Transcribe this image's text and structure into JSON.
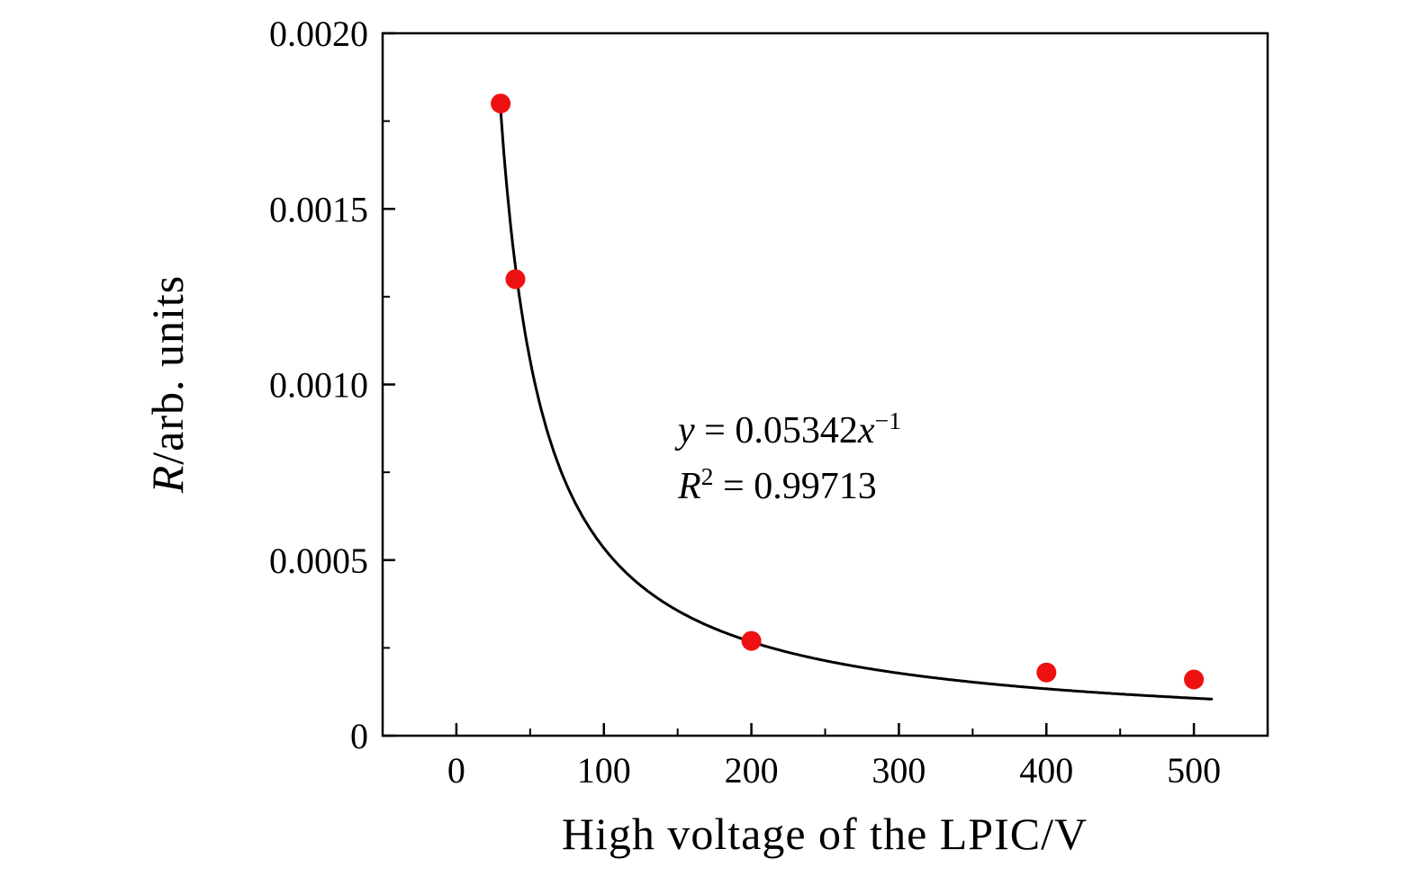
{
  "page": {
    "background": "#ffffff"
  },
  "chart_data": {
    "type": "scatter",
    "title": "",
    "xlabel": "High voltage of the LPIC/V",
    "ylabel": "R/arb. units",
    "ylabel_segments": [
      {
        "text": "R",
        "italic": true
      },
      {
        "text": "/arb. units",
        "italic": false
      }
    ],
    "xlim": [
      -50,
      550
    ],
    "ylim": [
      0,
      0.002
    ],
    "x_ticks": [
      0,
      100,
      200,
      300,
      400,
      500
    ],
    "x_tick_labels": [
      "0",
      "100",
      "200",
      "300",
      "400",
      "500"
    ],
    "x_minor_ticks": [
      50,
      150,
      250,
      350,
      450
    ],
    "y_ticks": [
      0,
      0.0005,
      0.001,
      0.0015,
      0.002
    ],
    "y_tick_labels": [
      "0",
      "0.0005",
      "0.0010",
      "0.0015",
      "0.0020"
    ],
    "y_minor_ticks": [
      0.00025,
      0.00075,
      0.00125,
      0.00175
    ],
    "grid": false,
    "legend": null,
    "axis_color": "#000000",
    "series": [
      {
        "name": "measured-points",
        "type": "scatter",
        "marker": "circle",
        "color": "#ee1111",
        "points": [
          {
            "x": 30,
            "y": 0.0018
          },
          {
            "x": 40,
            "y": 0.0013
          },
          {
            "x": 200,
            "y": 0.00027
          },
          {
            "x": 400,
            "y": 0.00018
          },
          {
            "x": 500,
            "y": 0.00016
          }
        ]
      },
      {
        "name": "power-fit",
        "type": "power-law-curve",
        "color": "#000000",
        "a": 0.05342,
        "exponent": -1,
        "x_start": 29.7,
        "x_end": 512
      }
    ],
    "annotation": {
      "equation_text": "y = 0.05342x⁻¹",
      "r_squared_text": "R² = 0.99713",
      "equation_segments": [
        {
          "text": "y",
          "italic": true
        },
        {
          "text": " = 0.05342",
          "italic": false
        },
        {
          "text": "x",
          "italic": true
        },
        {
          "text": "−1",
          "italic": false,
          "super": true
        }
      ],
      "r_squared_segments": [
        {
          "text": "R",
          "italic": true
        },
        {
          "text": "2",
          "italic": false,
          "super": true
        },
        {
          "text": " = 0.99713",
          "italic": false
        }
      ]
    }
  }
}
